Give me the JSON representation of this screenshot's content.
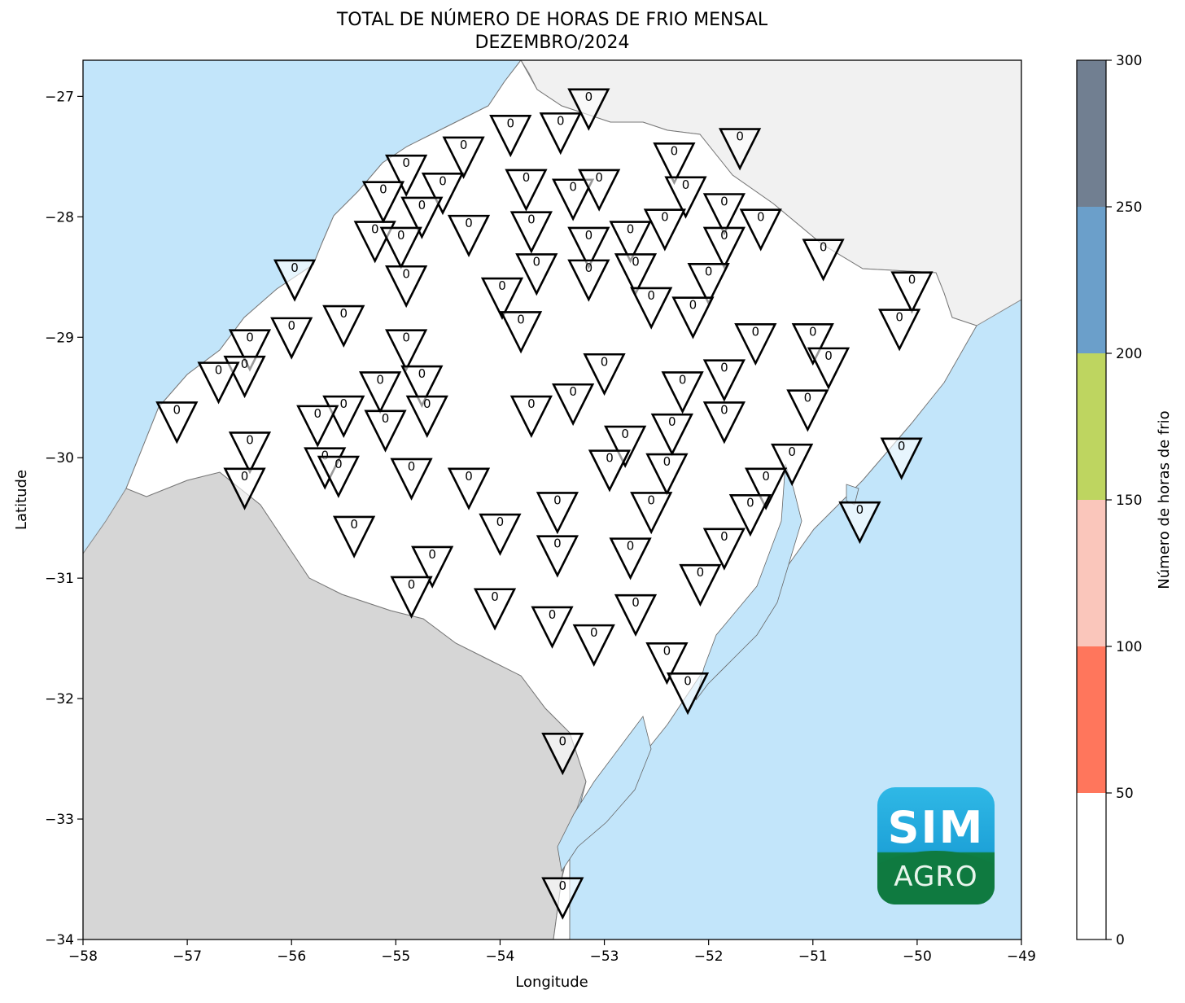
{
  "title_line1": "TOTAL DE NÚMERO DE HORAS DE FRIO MENSAL",
  "title_line2": "DEZEMBRO/2024",
  "xlabel": "Longitude",
  "ylabel": "Latitude",
  "colorbar_label": "Número de horas de frio",
  "logo": {
    "line1": "SIM",
    "line2": "AGRO"
  },
  "colors": {
    "ocean": "#c2e5fa",
    "neighbors": "#d6d6d6",
    "north_land": "#f1f1f1",
    "state": "#ffffff",
    "border": "#808080"
  },
  "chart_data": {
    "type": "map-stations",
    "xlim": [
      -58,
      -49
    ],
    "ylim": [
      -34,
      -26.7
    ],
    "x_ticks": [
      -58,
      -57,
      -56,
      -55,
      -54,
      -53,
      -52,
      -51,
      -50,
      -49
    ],
    "y_ticks": [
      -34,
      -33,
      -32,
      -31,
      -30,
      -29,
      -28,
      -27
    ],
    "x_tick_labels": [
      "−58",
      "−57",
      "−56",
      "−55",
      "−54",
      "−53",
      "−52",
      "−51",
      "−50",
      "−49"
    ],
    "y_tick_labels": [
      "−34",
      "−33",
      "−32",
      "−31",
      "−30",
      "−29",
      "−28",
      "−27"
    ],
    "colorbar": {
      "range": [
        0,
        300
      ],
      "ticks": [
        0,
        50,
        100,
        150,
        200,
        250,
        300
      ],
      "tick_labels": [
        "0",
        "50",
        "100",
        "150",
        "200",
        "250",
        "300"
      ],
      "bins": [
        {
          "from": 0,
          "to": 50,
          "color": "#ffffff"
        },
        {
          "from": 50,
          "to": 100,
          "color": "#ff765c"
        },
        {
          "from": 100,
          "to": 150,
          "color": "#fac6bb"
        },
        {
          "from": 150,
          "to": 200,
          "color": "#bed560"
        },
        {
          "from": 200,
          "to": 250,
          "color": "#6b9fca"
        },
        {
          "from": 250,
          "to": 300,
          "color": "#717f91"
        }
      ]
    },
    "stations": [
      {
        "lon": -53.15,
        "lat": -27.05,
        "value": 0
      },
      {
        "lon": -53.42,
        "lat": -27.25,
        "value": 0
      },
      {
        "lon": -53.9,
        "lat": -27.27,
        "value": 0
      },
      {
        "lon": -54.35,
        "lat": -27.45,
        "value": 0
      },
      {
        "lon": -54.9,
        "lat": -27.6,
        "value": 0
      },
      {
        "lon": -54.55,
        "lat": -27.75,
        "value": 0
      },
      {
        "lon": -55.12,
        "lat": -27.82,
        "value": 0
      },
      {
        "lon": -53.75,
        "lat": -27.72,
        "value": 0
      },
      {
        "lon": -53.3,
        "lat": -27.8,
        "value": 0
      },
      {
        "lon": -53.05,
        "lat": -27.72,
        "value": 0
      },
      {
        "lon": -52.33,
        "lat": -27.5,
        "value": 0
      },
      {
        "lon": -51.7,
        "lat": -27.38,
        "value": 0
      },
      {
        "lon": -52.22,
        "lat": -27.78,
        "value": 0
      },
      {
        "lon": -51.85,
        "lat": -27.92,
        "value": 0
      },
      {
        "lon": -51.5,
        "lat": -28.05,
        "value": 0
      },
      {
        "lon": -54.75,
        "lat": -27.95,
        "value": 0
      },
      {
        "lon": -55.2,
        "lat": -28.15,
        "value": 0
      },
      {
        "lon": -54.95,
        "lat": -28.2,
        "value": 0
      },
      {
        "lon": -54.3,
        "lat": -28.1,
        "value": 0
      },
      {
        "lon": -53.7,
        "lat": -28.07,
        "value": 0
      },
      {
        "lon": -53.15,
        "lat": -28.2,
        "value": 0
      },
      {
        "lon": -52.75,
        "lat": -28.15,
        "value": 0
      },
      {
        "lon": -52.42,
        "lat": -28.05,
        "value": 0
      },
      {
        "lon": -51.85,
        "lat": -28.2,
        "value": 0
      },
      {
        "lon": -55.97,
        "lat": -28.47,
        "value": 0
      },
      {
        "lon": -54.9,
        "lat": -28.52,
        "value": 0
      },
      {
        "lon": -53.65,
        "lat": -28.42,
        "value": 0
      },
      {
        "lon": -53.15,
        "lat": -28.47,
        "value": 0
      },
      {
        "lon": -52.7,
        "lat": -28.42,
        "value": 0
      },
      {
        "lon": -52.0,
        "lat": -28.5,
        "value": 0
      },
      {
        "lon": -50.9,
        "lat": -28.3,
        "value": 0
      },
      {
        "lon": -50.05,
        "lat": -28.57,
        "value": 0
      },
      {
        "lon": -53.98,
        "lat": -28.62,
        "value": 0
      },
      {
        "lon": -52.55,
        "lat": -28.7,
        "value": 0
      },
      {
        "lon": -52.15,
        "lat": -28.78,
        "value": 0
      },
      {
        "lon": -50.17,
        "lat": -28.88,
        "value": 0
      },
      {
        "lon": -53.8,
        "lat": -28.9,
        "value": 0
      },
      {
        "lon": -55.5,
        "lat": -28.85,
        "value": 0
      },
      {
        "lon": -56.0,
        "lat": -28.95,
        "value": 0
      },
      {
        "lon": -56.4,
        "lat": -29.05,
        "value": 0
      },
      {
        "lon": -54.9,
        "lat": -29.05,
        "value": 0
      },
      {
        "lon": -51.55,
        "lat": -29.0,
        "value": 0
      },
      {
        "lon": -51.0,
        "lat": -29.0,
        "value": 0
      },
      {
        "lon": -50.85,
        "lat": -29.2,
        "value": 0
      },
      {
        "lon": -56.45,
        "lat": -29.27,
        "value": 0
      },
      {
        "lon": -56.7,
        "lat": -29.32,
        "value": 0
      },
      {
        "lon": -53.0,
        "lat": -29.25,
        "value": 0
      },
      {
        "lon": -51.85,
        "lat": -29.3,
        "value": 0
      },
      {
        "lon": -55.15,
        "lat": -29.4,
        "value": 0
      },
      {
        "lon": -54.75,
        "lat": -29.35,
        "value": 0
      },
      {
        "lon": -52.25,
        "lat": -29.4,
        "value": 0
      },
      {
        "lon": -53.3,
        "lat": -29.5,
        "value": 0
      },
      {
        "lon": -51.05,
        "lat": -29.55,
        "value": 0
      },
      {
        "lon": -55.5,
        "lat": -29.6,
        "value": 0
      },
      {
        "lon": -54.7,
        "lat": -29.6,
        "value": 0
      },
      {
        "lon": -53.7,
        "lat": -29.6,
        "value": 0
      },
      {
        "lon": -55.75,
        "lat": -29.68,
        "value": 0
      },
      {
        "lon": -57.1,
        "lat": -29.65,
        "value": 0
      },
      {
        "lon": -55.1,
        "lat": -29.72,
        "value": 0
      },
      {
        "lon": -51.85,
        "lat": -29.65,
        "value": 0
      },
      {
        "lon": -52.35,
        "lat": -29.75,
        "value": 0
      },
      {
        "lon": -56.4,
        "lat": -29.9,
        "value": 0
      },
      {
        "lon": -52.8,
        "lat": -29.85,
        "value": 0
      },
      {
        "lon": -51.2,
        "lat": -30.0,
        "value": 0
      },
      {
        "lon": -50.15,
        "lat": -29.95,
        "value": 0
      },
      {
        "lon": -55.68,
        "lat": -30.03,
        "value": 0
      },
      {
        "lon": -52.95,
        "lat": -30.05,
        "value": 0
      },
      {
        "lon": -52.4,
        "lat": -30.08,
        "value": 0
      },
      {
        "lon": -55.55,
        "lat": -30.1,
        "value": 0
      },
      {
        "lon": -54.85,
        "lat": -30.12,
        "value": 0
      },
      {
        "lon": -54.3,
        "lat": -30.2,
        "value": 0
      },
      {
        "lon": -56.45,
        "lat": -30.2,
        "value": 0
      },
      {
        "lon": -51.45,
        "lat": -30.2,
        "value": 0
      },
      {
        "lon": -53.45,
        "lat": -30.4,
        "value": 0
      },
      {
        "lon": -52.55,
        "lat": -30.4,
        "value": 0
      },
      {
        "lon": -51.6,
        "lat": -30.42,
        "value": 0
      },
      {
        "lon": -50.55,
        "lat": -30.48,
        "value": 0
      },
      {
        "lon": -55.4,
        "lat": -30.6,
        "value": 0
      },
      {
        "lon": -54.0,
        "lat": -30.58,
        "value": 0
      },
      {
        "lon": -51.85,
        "lat": -30.7,
        "value": 0
      },
      {
        "lon": -53.45,
        "lat": -30.76,
        "value": 0
      },
      {
        "lon": -52.75,
        "lat": -30.78,
        "value": 0
      },
      {
        "lon": -54.65,
        "lat": -30.85,
        "value": 0
      },
      {
        "lon": -52.08,
        "lat": -31.0,
        "value": 0
      },
      {
        "lon": -54.85,
        "lat": -31.1,
        "value": 0
      },
      {
        "lon": -54.05,
        "lat": -31.2,
        "value": 0
      },
      {
        "lon": -52.7,
        "lat": -31.25,
        "value": 0
      },
      {
        "lon": -53.5,
        "lat": -31.35,
        "value": 0
      },
      {
        "lon": -53.1,
        "lat": -31.5,
        "value": 0
      },
      {
        "lon": -52.4,
        "lat": -31.65,
        "value": 0
      },
      {
        "lon": -52.2,
        "lat": -31.9,
        "value": 0
      },
      {
        "lon": -53.4,
        "lat": -32.4,
        "value": 0
      },
      {
        "lon": -53.4,
        "lat": -33.6,
        "value": 0
      }
    ]
  }
}
